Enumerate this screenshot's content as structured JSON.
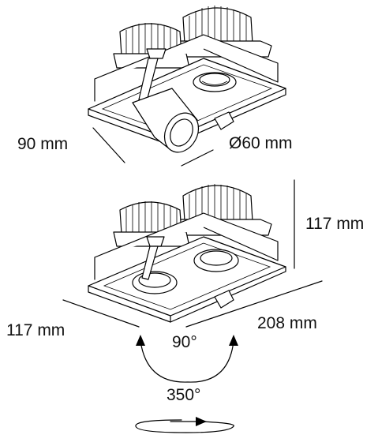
{
  "top_view": {
    "depth_label": "90 mm",
    "diameter_label": "Ø60 mm"
  },
  "bottom_view": {
    "height_label": "117 mm",
    "width_label": "117 mm",
    "length_label": "208 mm",
    "tilt_label": "90°",
    "rotation_label": "350°"
  }
}
